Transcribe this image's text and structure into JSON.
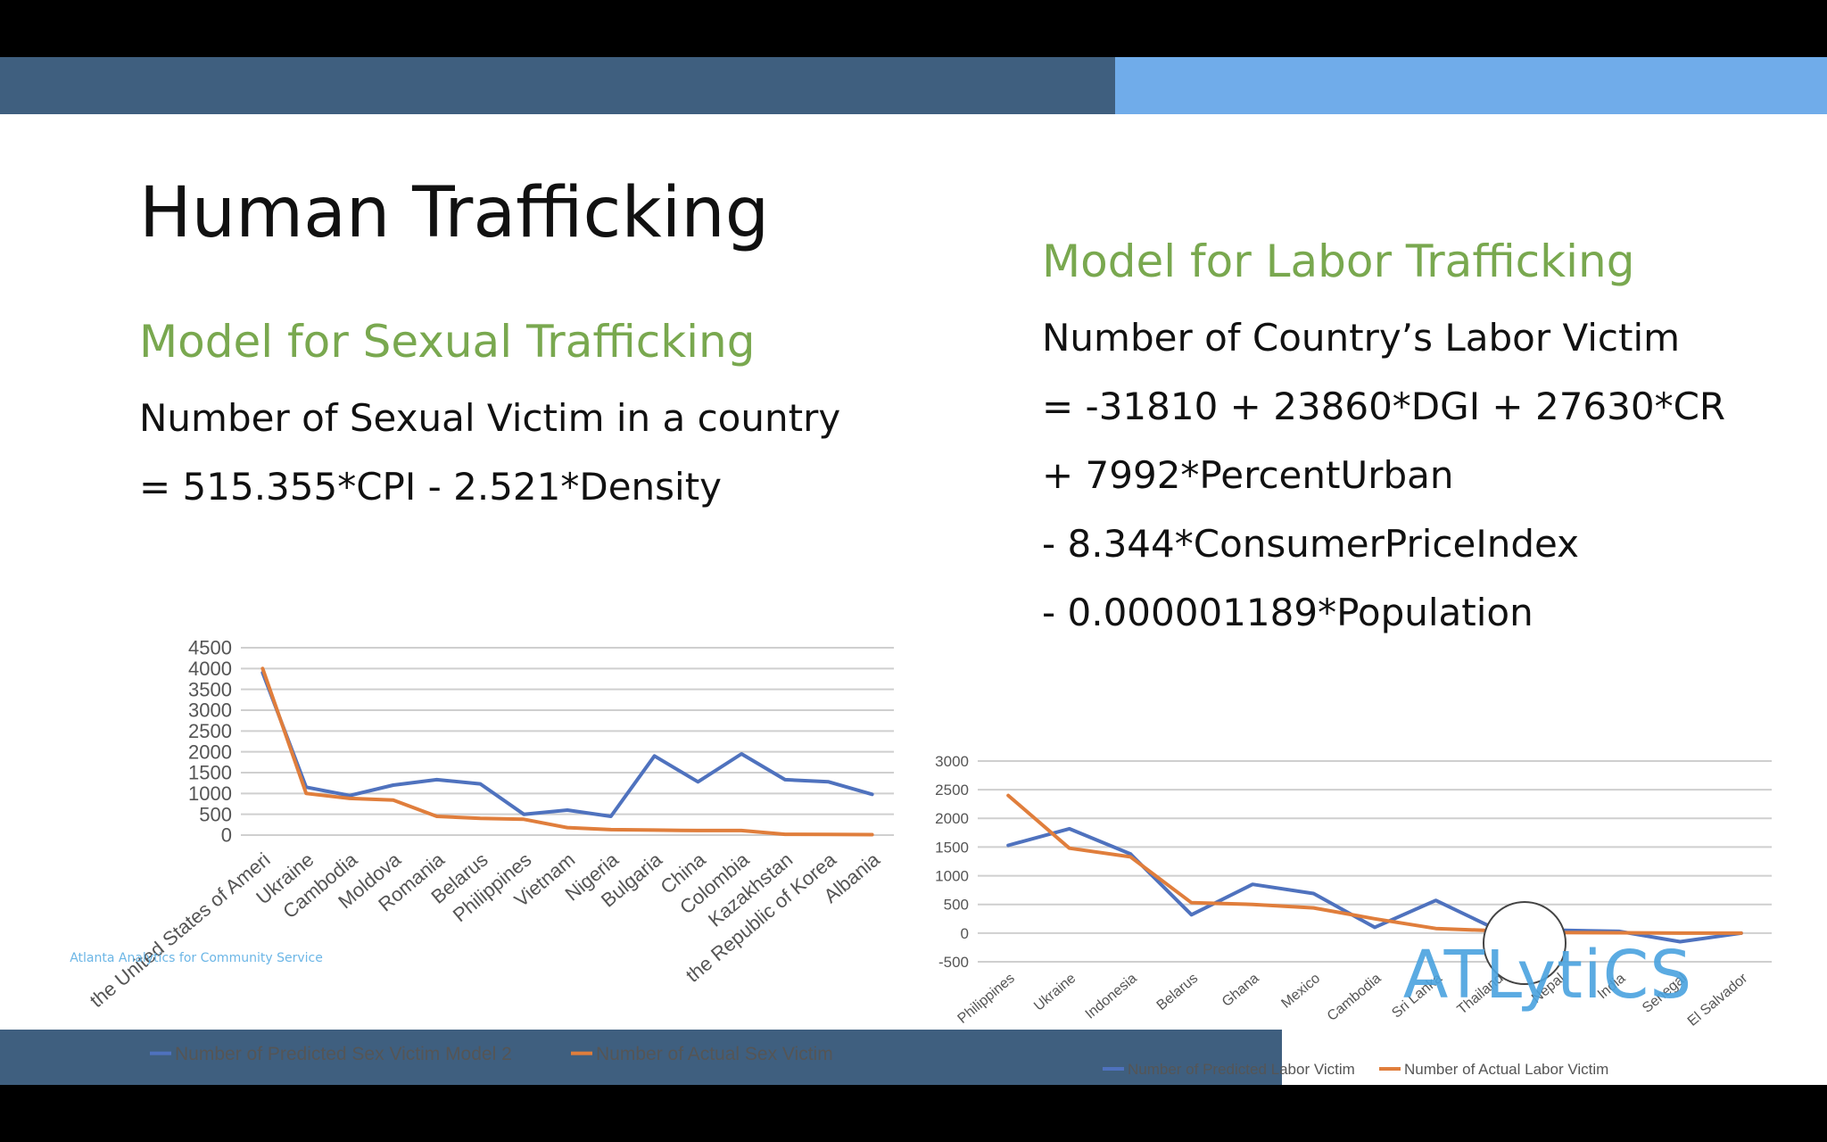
{
  "slide": {
    "title": "Human Trafficking",
    "sex_heading": "Model for Sexual Trafficking",
    "sex_equation_line1": "Number of Sexual Victim in a country",
    "sex_equation_line2": "= 515.355*CPI - 2.521*Density",
    "labor_heading": "Model for Labor Trafficking",
    "labor_equation_lines": [
      "Number of Country’s Labor Victim",
      "= -31810 + 23860*DGI + 27630*CR",
      "+ 7992*PercentUrban",
      "- 8.344*ConsumerPriceIndex",
      "- 0.000001189*Population"
    ],
    "logo_text": "ATLytiCS",
    "logo_subtext": "Atlanta Analytics for Community Service"
  },
  "colors": {
    "dark_bar": "#3f5f7f",
    "light_bar": "#70acea",
    "heading_green": "#79a84f",
    "series_predicted": "#4f72be",
    "series_actual": "#e07e3c"
  },
  "chart_data": [
    {
      "type": "line",
      "categories": [
        "the United States of America",
        "Ukraine",
        "Cambodia",
        "Moldova",
        "Romania",
        "Belarus",
        "Philippines",
        "Vietnam",
        "Nigeria",
        "Bulgaria",
        "China",
        "Colombia",
        "Kazakhstan",
        "the Republic of Korea",
        "Albania"
      ],
      "category_tick_labels": [
        "the United States of Ameri",
        "Ukraine",
        "Cambodia",
        "Moldova",
        "Romania",
        "Belarus",
        "Philippines",
        "Vietnam",
        "Nigeria",
        "Bulgaria",
        "China",
        "Colombia",
        "Kazakhstan",
        "the Republic of Korea",
        "Albania"
      ],
      "series": [
        {
          "name": "Number of Predicted Sex Victim Model 2",
          "values": [
            3900,
            1150,
            950,
            1200,
            1330,
            1230,
            500,
            600,
            450,
            1900,
            1280,
            1950,
            1330,
            1280,
            980
          ]
        },
        {
          "name": "Number of Actual Sex Victim",
          "values": [
            4000,
            1000,
            880,
            840,
            450,
            400,
            380,
            180,
            130,
            120,
            110,
            110,
            20,
            15,
            10
          ]
        }
      ],
      "ylim": [
        0,
        4500
      ],
      "yticks": [
        "0",
        "500",
        "1000",
        "1500",
        "2000",
        "2500",
        "3000",
        "3500",
        "4000",
        "4500"
      ],
      "grid": true,
      "legend": "bottom"
    },
    {
      "type": "line",
      "categories": [
        "Philippines",
        "Ukraine",
        "Indonesia",
        "Belarus",
        "Ghana",
        "Mexico",
        "Cambodia",
        "Sri Lanka",
        "Thailand",
        "Nepal",
        "India",
        "Senegal",
        "El Salvador"
      ],
      "series": [
        {
          "name": "Number of Predicted Labor Victim",
          "values": [
            1530,
            1820,
            1380,
            320,
            850,
            690,
            100,
            570,
            60,
            50,
            30,
            -150,
            0
          ]
        },
        {
          "name": "Number of Actual Labor Victim",
          "values": [
            2400,
            1480,
            1330,
            530,
            500,
            440,
            250,
            80,
            40,
            10,
            5,
            0,
            0
          ]
        }
      ],
      "ylim": [
        -500,
        3000
      ],
      "yticks": [
        "-500",
        "0",
        "500",
        "1000",
        "1500",
        "2000",
        "2500",
        "3000"
      ],
      "grid": true,
      "legend": "bottom"
    }
  ]
}
